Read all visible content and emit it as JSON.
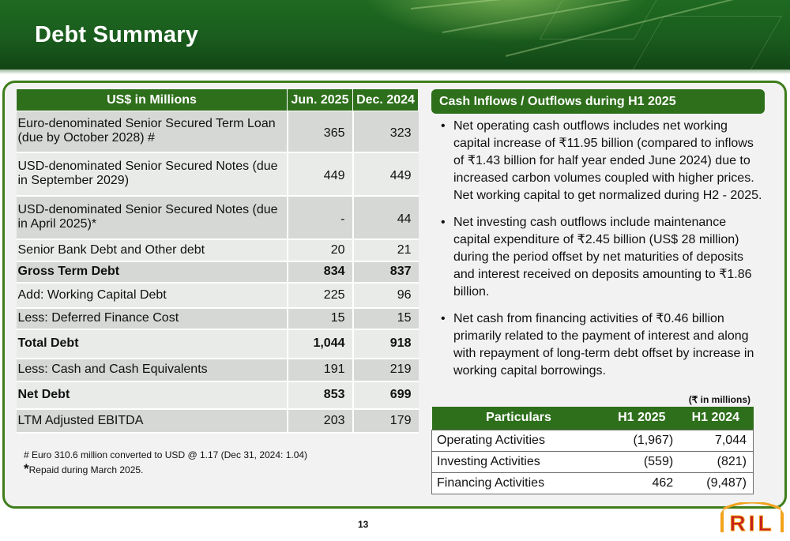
{
  "slide": {
    "title": "Debt Summary",
    "page_number": "13",
    "logo_text": "RIL",
    "colors": {
      "primary_green": "#2e6f1b",
      "frame_border": "#3f7d1c",
      "logo_gold": "#f2a31d",
      "logo_red": "#c61f1f"
    }
  },
  "debt_table": {
    "headers": [
      "US$ in Millions",
      "Jun. 2025",
      "Dec. 2024"
    ],
    "rows": [
      {
        "label": "Euro-denominated Senior Secured Term Loan (due by October 2028) #",
        "jun": "365",
        "dec": "323",
        "bold": false,
        "shaded": true
      },
      {
        "label": "USD-denominated Senior Secured Notes (due in September 2029)",
        "jun": "449",
        "dec": "449",
        "bold": false,
        "shaded": false
      },
      {
        "label": "USD-denominated Senior Secured Notes (due in April 2025)*",
        "jun": "-",
        "dec": "44",
        "bold": false,
        "shaded": true
      },
      {
        "label": "Senior Bank Debt and Other debt",
        "jun": "20",
        "dec": "21",
        "bold": false,
        "shaded": false
      },
      {
        "label": "Gross Term Debt",
        "jun": "834",
        "dec": "837",
        "bold": true,
        "shaded": true
      },
      {
        "label": "Add: Working Capital Debt",
        "jun": "225",
        "dec": "96",
        "bold": false,
        "shaded": false
      },
      {
        "label": "Less: Deferred Finance Cost",
        "jun": "15",
        "dec": "15",
        "bold": false,
        "shaded": true
      },
      {
        "label": "Total Debt",
        "jun": "1,044",
        "dec": "918",
        "bold": true,
        "shaded": false
      },
      {
        "label": "Less: Cash and Cash Equivalents",
        "jun": "191",
        "dec": "219",
        "bold": false,
        "shaded": true
      },
      {
        "label": "Net Debt",
        "jun": "853",
        "dec": "699",
        "bold": true,
        "shaded": false
      },
      {
        "label": "LTM Adjusted EBITDA",
        "jun": "203",
        "dec": "179",
        "bold": false,
        "shaded": true
      }
    ]
  },
  "footnotes": {
    "note1": "# Euro 310.6 million converted to USD @ 1.17 (Dec 31, 2024: 1.04)",
    "note2_symbol": "*",
    "note2": "Repaid during March 2025."
  },
  "cash_flows": {
    "header": "Cash Inflows / Outflows during H1 2025",
    "bullet_symbol": "•",
    "bullets": [
      "Net operating cash outflows includes net working capital increase of ₹11.95 billion (compared to inflows of ₹1.43 billion for half year ended June 2024) due to increased carbon volumes coupled with higher prices. Net working capital to get normalized during H2 - 2025.",
      "Net investing cash outflows include maintenance capital expenditure of ₹2.45 billion (US$ 28 million) during the period offset by net maturities of deposits and interest received on deposits amounting to ₹1.86 billion.",
      "Net cash from financing activities of ₹0.46 billion primarily related to the payment of interest and along with repayment of long-term debt offset by increase in working capital borrowings."
    ],
    "unit_note": "(₹ in millions)",
    "table_headers": [
      "Particulars",
      "H1 2025",
      "H1 2024"
    ],
    "table_rows": [
      {
        "label": "Operating Activities",
        "h1_2025": "(1,967)",
        "h1_2024": "7,044"
      },
      {
        "label": "Investing Activities",
        "h1_2025": "(559)",
        "h1_2024": "(821)"
      },
      {
        "label": "Financing Activities",
        "h1_2025": "462",
        "h1_2024": "(9,487)"
      }
    ]
  }
}
